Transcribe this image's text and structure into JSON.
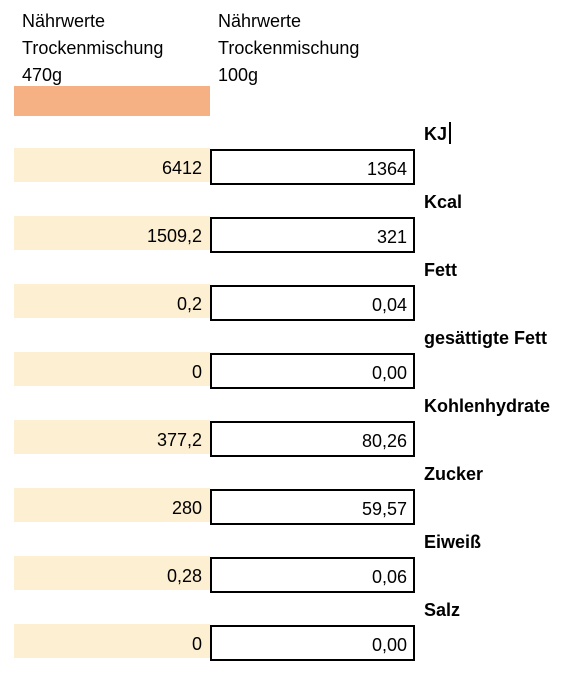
{
  "header": {
    "left": {
      "line1": "Nährwerte",
      "line2": "Trockenmischung",
      "line3": "470g"
    },
    "right": {
      "line1": "Nährwerte",
      "line2": "Trockenmischung",
      "line3": "100g"
    }
  },
  "colors": {
    "accent": "#f5b183",
    "cell_fill": "#fdefd1",
    "border": "#000000"
  },
  "rows": [
    {
      "label": "KJ",
      "total": "6412",
      "per100": "1364"
    },
    {
      "label": "Kcal",
      "total": "1509,2",
      "per100": "321"
    },
    {
      "label": "Fett",
      "total": "0,2",
      "per100": "0,04"
    },
    {
      "label": "gesättigte Fett",
      "total": "0",
      "per100": "0,00"
    },
    {
      "label": "Kohlenhydrate",
      "total": "377,2",
      "per100": "80,26"
    },
    {
      "label": "Zucker",
      "total": "280",
      "per100": "59,57"
    },
    {
      "label": "Eiweiß",
      "total": "0,28",
      "per100": "0,06"
    },
    {
      "label": "Salz",
      "total": "0",
      "per100": "0,00"
    }
  ]
}
